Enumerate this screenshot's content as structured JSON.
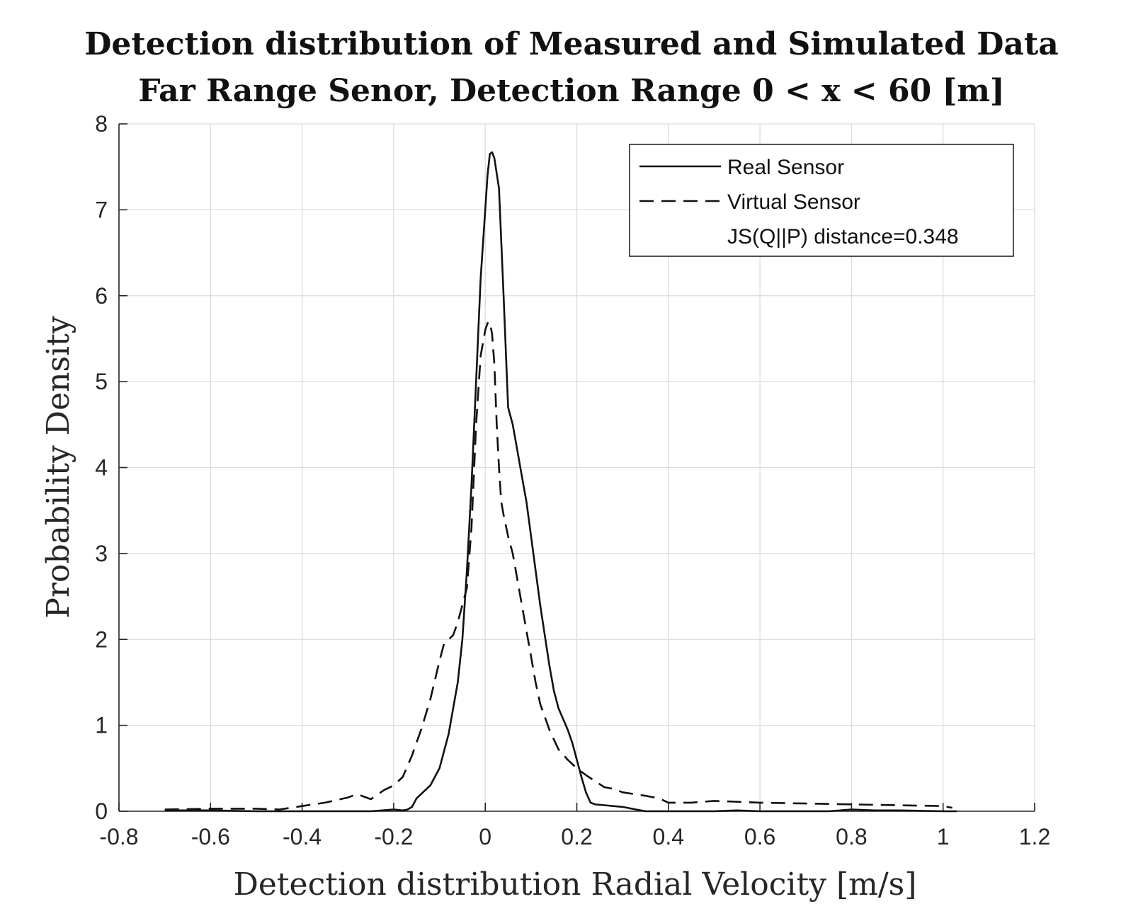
{
  "chart_data": {
    "type": "line",
    "title_lines": [
      "Detection distribution of Measured and Simulated Data",
      "Far Range Senor, Detection Range 0 < x < 60 [m]"
    ],
    "xlabel": "Detection distribution Radial Velocity [m/s]",
    "ylabel": "Probability Density",
    "xlim": [
      -0.8,
      1.2
    ],
    "ylim": [
      0,
      8
    ],
    "xticks": [
      -0.8,
      -0.6,
      -0.4,
      -0.2,
      0,
      0.2,
      0.4,
      0.6,
      0.8,
      1,
      1.2
    ],
    "xtick_labels": [
      "-0.8",
      "-0.6",
      "-0.4",
      "-0.2",
      "0",
      "0.2",
      "0.4",
      "0.6",
      "0.8",
      "1",
      "1.2"
    ],
    "yticks": [
      0,
      1,
      2,
      3,
      4,
      5,
      6,
      7,
      8
    ],
    "ytick_labels": [
      "0",
      "1",
      "2",
      "3",
      "4",
      "5",
      "6",
      "7",
      "8"
    ],
    "grid": true,
    "legend_position": "top-right",
    "legend_note": "JS(Q||P) distance=0.348",
    "series": [
      {
        "name": "Real Sensor",
        "style": "solid",
        "color": "#111111",
        "x": [
          -0.7,
          -0.6,
          -0.5,
          -0.4,
          -0.3,
          -0.25,
          -0.2,
          -0.18,
          -0.17,
          -0.16,
          -0.15,
          -0.14,
          -0.12,
          -0.1,
          -0.08,
          -0.06,
          -0.05,
          -0.04,
          -0.03,
          -0.02,
          -0.01,
          0,
          0.005,
          0.01,
          0.015,
          0.02,
          0.03,
          0.04,
          0.05,
          0.06,
          0.07,
          0.08,
          0.09,
          0.1,
          0.12,
          0.14,
          0.15,
          0.16,
          0.18,
          0.19,
          0.2,
          0.21,
          0.22,
          0.23,
          0.24,
          0.26,
          0.3,
          0.33,
          0.35,
          0.4,
          0.5,
          0.55,
          0.6,
          0.7,
          0.75,
          0.8,
          0.85,
          0.9,
          1.0,
          1.03
        ],
        "y": [
          0.01,
          0.01,
          0,
          0,
          0,
          0,
          0.02,
          0.01,
          0.02,
          0.05,
          0.15,
          0.2,
          0.3,
          0.5,
          0.9,
          1.5,
          2.0,
          2.8,
          3.8,
          5.0,
          6.2,
          7.0,
          7.4,
          7.65,
          7.67,
          7.6,
          7.25,
          6.0,
          4.7,
          4.5,
          4.2,
          3.9,
          3.6,
          3.2,
          2.4,
          1.7,
          1.4,
          1.2,
          0.95,
          0.8,
          0.6,
          0.4,
          0.22,
          0.1,
          0.08,
          0.07,
          0.05,
          0.02,
          0,
          0,
          0,
          0.01,
          0,
          0,
          0,
          0.02,
          0.01,
          0.01,
          0,
          0
        ]
      },
      {
        "name": "Virtual Sensor",
        "style": "dashed",
        "color": "#111111",
        "x": [
          -0.7,
          -0.6,
          -0.5,
          -0.45,
          -0.4,
          -0.35,
          -0.3,
          -0.28,
          -0.25,
          -0.22,
          -0.2,
          -0.18,
          -0.16,
          -0.14,
          -0.12,
          -0.1,
          -0.09,
          -0.08,
          -0.07,
          -0.06,
          -0.05,
          -0.04,
          -0.03,
          -0.02,
          -0.01,
          0,
          0.005,
          0.01,
          0.015,
          0.02,
          0.025,
          0.03,
          0.035,
          0.04,
          0.05,
          0.06,
          0.07,
          0.08,
          0.09,
          0.1,
          0.11,
          0.12,
          0.14,
          0.16,
          0.18,
          0.2,
          0.22,
          0.24,
          0.26,
          0.28,
          0.3,
          0.35,
          0.38,
          0.4,
          0.45,
          0.5,
          0.6,
          0.7,
          0.8,
          0.9,
          1.0,
          1.02
        ],
        "y": [
          0.02,
          0.03,
          0.03,
          0.02,
          0.06,
          0.1,
          0.16,
          0.2,
          0.14,
          0.25,
          0.3,
          0.4,
          0.65,
          0.95,
          1.3,
          1.75,
          1.95,
          2.0,
          2.05,
          2.2,
          2.4,
          2.6,
          3.3,
          4.5,
          5.3,
          5.6,
          5.68,
          5.7,
          5.55,
          5.2,
          4.5,
          4.0,
          3.6,
          3.45,
          3.2,
          3.0,
          2.7,
          2.4,
          2.1,
          1.8,
          1.5,
          1.25,
          0.95,
          0.72,
          0.6,
          0.5,
          0.42,
          0.35,
          0.28,
          0.26,
          0.22,
          0.18,
          0.15,
          0.1,
          0.1,
          0.12,
          0.1,
          0.09,
          0.08,
          0.07,
          0.06,
          0.04
        ]
      }
    ]
  }
}
